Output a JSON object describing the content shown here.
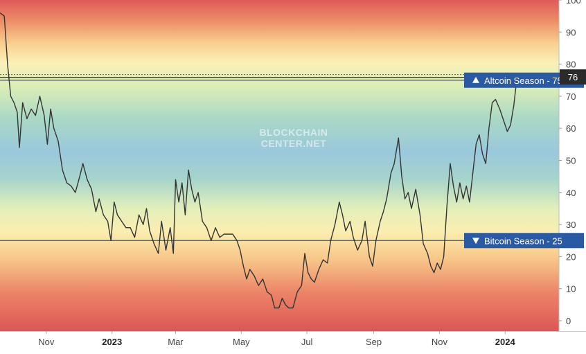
{
  "chart_data": {
    "type": "line",
    "title": "",
    "watermark": [
      "BLOCKCHAIN",
      "CENTER.NET"
    ],
    "xlabel": "",
    "ylabel": "",
    "ylim": [
      0,
      100
    ],
    "y_ticks": [
      0,
      10,
      20,
      30,
      40,
      50,
      60,
      70,
      80,
      90,
      100
    ],
    "y_tick_labels": [
      "0",
      "10",
      "20",
      "30",
      "40",
      "50",
      "60",
      "70",
      "80",
      "90",
      "100"
    ],
    "x_range": [
      "2022-09-19",
      "2024-02-20"
    ],
    "x_ticks": [
      {
        "date": "2022-11-01",
        "label": "Nov",
        "bold": false
      },
      {
        "date": "2023-01-01",
        "label": "2023",
        "bold": true
      },
      {
        "date": "2023-03-01",
        "label": "Mar",
        "bold": false
      },
      {
        "date": "2023-05-01",
        "label": "May",
        "bold": false
      },
      {
        "date": "2023-07-01",
        "label": "Jul",
        "bold": false
      },
      {
        "date": "2023-09-01",
        "label": "Sep",
        "bold": false
      },
      {
        "date": "2023-11-01",
        "label": "Nov",
        "bold": false
      },
      {
        "date": "2024-01-01",
        "label": "2024",
        "bold": true
      }
    ],
    "reference_lines": [
      {
        "value": 75,
        "label": "Altcoin Season - 75",
        "marker": "up",
        "color": "#2a5aa3"
      },
      {
        "value": 25,
        "label": "Bitcoin Season - 25",
        "marker": "down",
        "color": "#2a5aa3"
      }
    ],
    "current_value": {
      "value": 76,
      "label": "76"
    },
    "background_gradient": "red-yellow-green-blue-green-yellow-red",
    "series": [
      {
        "color": "#333333",
        "points": [
          [
            "2022-09-19",
            96
          ],
          [
            "2022-09-23",
            95
          ],
          [
            "2022-09-26",
            80
          ],
          [
            "2022-09-29",
            70
          ],
          [
            "2022-10-02",
            68
          ],
          [
            "2022-10-05",
            65
          ],
          [
            "2022-10-07",
            54
          ],
          [
            "2022-10-10",
            68
          ],
          [
            "2022-10-14",
            63
          ],
          [
            "2022-10-18",
            66
          ],
          [
            "2022-10-22",
            64
          ],
          [
            "2022-10-26",
            70
          ],
          [
            "2022-10-30",
            64
          ],
          [
            "2022-11-02",
            55
          ],
          [
            "2022-11-05",
            66
          ],
          [
            "2022-11-08",
            60
          ],
          [
            "2022-11-12",
            56
          ],
          [
            "2022-11-16",
            47
          ],
          [
            "2022-11-20",
            43
          ],
          [
            "2022-11-24",
            42
          ],
          [
            "2022-11-28",
            40
          ],
          [
            "2022-12-02",
            45
          ],
          [
            "2022-12-05",
            49
          ],
          [
            "2022-12-09",
            44
          ],
          [
            "2022-12-13",
            41
          ],
          [
            "2022-12-17",
            34
          ],
          [
            "2022-12-20",
            38
          ],
          [
            "2022-12-24",
            33
          ],
          [
            "2022-12-28",
            31
          ],
          [
            "2022-12-31",
            25
          ],
          [
            "2023-01-03",
            37
          ],
          [
            "2023-01-06",
            33
          ],
          [
            "2023-01-10",
            31
          ],
          [
            "2023-01-14",
            29
          ],
          [
            "2023-01-18",
            29
          ],
          [
            "2023-01-22",
            26
          ],
          [
            "2023-01-26",
            33
          ],
          [
            "2023-01-30",
            30
          ],
          [
            "2023-02-02",
            35
          ],
          [
            "2023-02-05",
            28
          ],
          [
            "2023-02-09",
            24
          ],
          [
            "2023-02-13",
            21
          ],
          [
            "2023-02-16",
            31
          ],
          [
            "2023-02-20",
            22
          ],
          [
            "2023-02-24",
            29
          ],
          [
            "2023-02-27",
            21
          ],
          [
            "2023-03-01",
            44
          ],
          [
            "2023-03-04",
            37
          ],
          [
            "2023-03-07",
            43
          ],
          [
            "2023-03-10",
            33
          ],
          [
            "2023-03-13",
            47
          ],
          [
            "2023-03-16",
            41
          ],
          [
            "2023-03-19",
            37
          ],
          [
            "2023-03-22",
            40
          ],
          [
            "2023-03-26",
            31
          ],
          [
            "2023-03-30",
            29
          ],
          [
            "2023-04-03",
            25
          ],
          [
            "2023-04-07",
            29
          ],
          [
            "2023-04-11",
            26
          ],
          [
            "2023-04-15",
            27
          ],
          [
            "2023-04-19",
            27
          ],
          [
            "2023-04-23",
            27
          ],
          [
            "2023-04-27",
            25
          ],
          [
            "2023-04-30",
            22
          ],
          [
            "2023-05-03",
            17
          ],
          [
            "2023-05-06",
            13
          ],
          [
            "2023-05-09",
            16
          ],
          [
            "2023-05-13",
            14
          ],
          [
            "2023-05-17",
            11
          ],
          [
            "2023-05-21",
            13
          ],
          [
            "2023-05-25",
            9
          ],
          [
            "2023-05-29",
            8
          ],
          [
            "2023-06-01",
            4
          ],
          [
            "2023-06-05",
            4
          ],
          [
            "2023-06-08",
            7
          ],
          [
            "2023-06-11",
            5
          ],
          [
            "2023-06-14",
            4
          ],
          [
            "2023-06-18",
            4
          ],
          [
            "2023-06-22",
            9
          ],
          [
            "2023-06-26",
            11
          ],
          [
            "2023-06-29",
            21
          ],
          [
            "2023-07-02",
            15
          ],
          [
            "2023-07-05",
            13
          ],
          [
            "2023-07-08",
            12
          ],
          [
            "2023-07-12",
            16
          ],
          [
            "2023-07-16",
            19
          ],
          [
            "2023-07-20",
            18
          ],
          [
            "2023-07-23",
            25
          ],
          [
            "2023-07-27",
            30
          ],
          [
            "2023-07-31",
            37
          ],
          [
            "2023-08-03",
            33
          ],
          [
            "2023-08-06",
            28
          ],
          [
            "2023-08-10",
            31
          ],
          [
            "2023-08-13",
            26
          ],
          [
            "2023-08-17",
            22
          ],
          [
            "2023-08-21",
            25
          ],
          [
            "2023-08-24",
            31
          ],
          [
            "2023-08-28",
            20
          ],
          [
            "2023-08-31",
            17
          ],
          [
            "2023-09-03",
            25
          ],
          [
            "2023-09-07",
            31
          ],
          [
            "2023-09-10",
            34
          ],
          [
            "2023-09-13",
            38
          ],
          [
            "2023-09-17",
            46
          ],
          [
            "2023-09-20",
            49
          ],
          [
            "2023-09-24",
            57
          ],
          [
            "2023-09-27",
            45
          ],
          [
            "2023-09-30",
            38
          ],
          [
            "2023-10-03",
            40
          ],
          [
            "2023-10-06",
            35
          ],
          [
            "2023-10-10",
            41
          ],
          [
            "2023-10-14",
            33
          ],
          [
            "2023-10-17",
            24
          ],
          [
            "2023-10-21",
            21
          ],
          [
            "2023-10-24",
            17
          ],
          [
            "2023-10-27",
            15
          ],
          [
            "2023-10-30",
            18
          ],
          [
            "2023-11-02",
            16
          ],
          [
            "2023-11-05",
            20
          ],
          [
            "2023-11-08",
            36
          ],
          [
            "2023-11-11",
            49
          ],
          [
            "2023-11-14",
            42
          ],
          [
            "2023-11-17",
            37
          ],
          [
            "2023-11-20",
            43
          ],
          [
            "2023-11-23",
            38
          ],
          [
            "2023-11-26",
            42
          ],
          [
            "2023-11-29",
            37
          ],
          [
            "2023-12-02",
            46
          ],
          [
            "2023-12-05",
            55
          ],
          [
            "2023-12-08",
            58
          ],
          [
            "2023-12-11",
            52
          ],
          [
            "2023-12-14",
            49
          ],
          [
            "2023-12-17",
            60
          ],
          [
            "2023-12-20",
            68
          ],
          [
            "2023-12-23",
            69
          ],
          [
            "2023-12-27",
            66
          ],
          [
            "2023-12-31",
            62
          ],
          [
            "2024-01-03",
            59
          ],
          [
            "2024-01-06",
            61
          ],
          [
            "2024-01-09",
            67
          ],
          [
            "2024-01-12",
            76
          ]
        ]
      }
    ]
  }
}
